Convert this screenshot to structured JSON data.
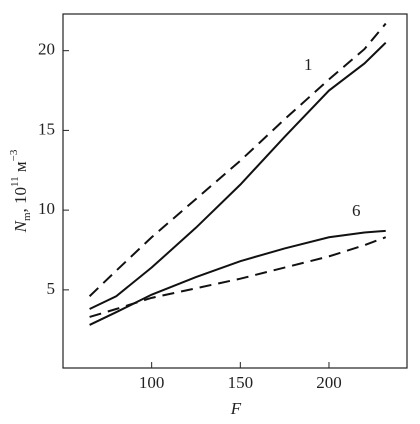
{
  "chart_data": {
    "type": "line",
    "x_label": "F",
    "y_label_parts": [
      "N",
      "m",
      ", 10",
      "11",
      " м",
      "−3"
    ],
    "annotations": [
      "1",
      "6"
    ],
    "x": [
      65,
      80,
      100,
      125,
      150,
      175,
      200,
      220,
      232
    ],
    "series": [
      {
        "color": "#111111",
        "dashed": false,
        "values": [
          3.8,
          4.6,
          6.4,
          8.9,
          11.6,
          14.6,
          17.5,
          19.2,
          20.5
        ]
      },
      {
        "color": "#111111",
        "dashed": true,
        "values": [
          4.6,
          6.2,
          8.3,
          10.7,
          13.1,
          15.7,
          18.2,
          20.1,
          21.7
        ]
      },
      {
        "color": "#111111",
        "dashed": false,
        "values": [
          2.8,
          3.6,
          4.7,
          5.8,
          6.8,
          7.6,
          8.3,
          8.6,
          8.7
        ]
      },
      {
        "color": "#111111",
        "dashed": true,
        "values": [
          3.3,
          3.8,
          4.5,
          5.1,
          5.7,
          6.4,
          7.1,
          7.8,
          8.3
        ]
      }
    ],
    "xlim": [
      50,
      244
    ],
    "ylim": [
      0.1,
      22.3
    ],
    "xticks": [
      100,
      150,
      200
    ],
    "yticks": [
      5,
      10,
      15,
      20
    ]
  }
}
